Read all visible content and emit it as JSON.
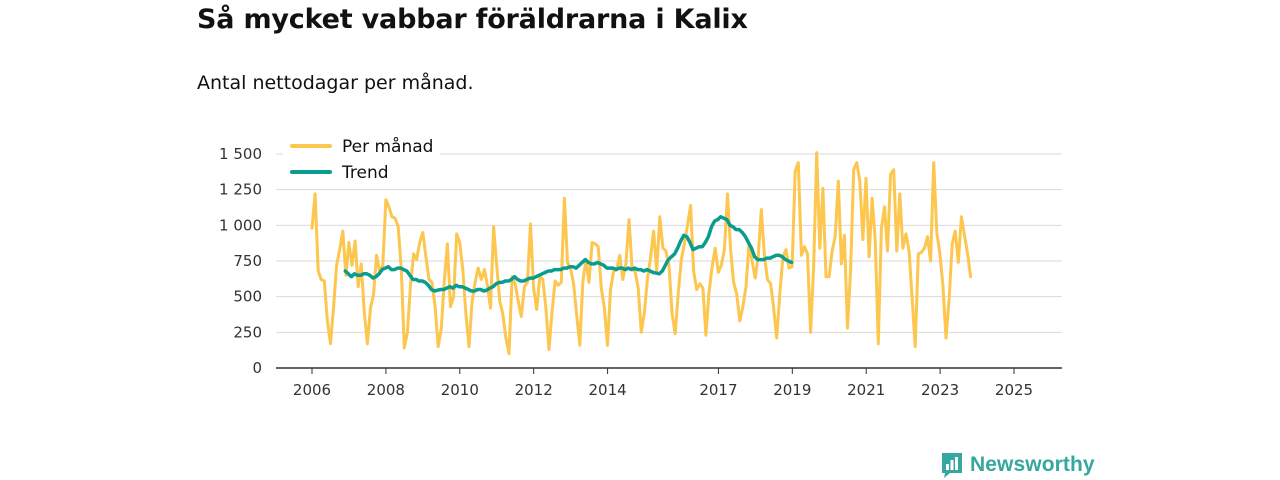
{
  "header": {
    "title": "Så mycket vabbar föräldrarna i Kalix",
    "subtitle": "Antal nettodagar per månad."
  },
  "brand": {
    "name": "Newsworthy"
  },
  "colors": {
    "per_month": "#fcc64f",
    "trend": "#0a9d8f",
    "grid": "#d9d9d9",
    "brand": "#35a79e"
  },
  "chart_data": {
    "type": "line",
    "title": "Så mycket vabbar föräldrarna i Kalix",
    "subtitle": "Antal nettodagar per månad.",
    "xlabel": "",
    "ylabel": "",
    "ylim": [
      0,
      1500
    ],
    "yticks": [
      0,
      250,
      500,
      750,
      1000,
      1250,
      1500
    ],
    "ytick_labels": [
      "0",
      "250",
      "500",
      "750",
      "1 000",
      "1 250",
      "1 500"
    ],
    "xlim": [
      2006.0,
      2025.5
    ],
    "xticks": [
      2006,
      2008,
      2010,
      2012,
      2014,
      2017,
      2019,
      2021,
      2023,
      2025
    ],
    "xtick_labels": [
      "2006",
      "2008",
      "2010",
      "2012",
      "2014",
      "2017",
      "2019",
      "2021",
      "2023",
      "2025"
    ],
    "grid": true,
    "legend_position": "top-left",
    "series": [
      {
        "name": "Per månad",
        "x_start": 2006.0,
        "step": 0.0833,
        "values": [
          980,
          1220,
          680,
          620,
          610,
          330,
          170,
          420,
          720,
          830,
          960,
          650,
          880,
          720,
          890,
          570,
          730,
          390,
          170,
          420,
          520,
          790,
          680,
          720,
          1180,
          1130,
          1060,
          1050,
          990,
          690,
          140,
          250,
          580,
          800,
          760,
          880,
          950,
          780,
          620,
          600,
          430,
          150,
          280,
          610,
          870,
          430,
          500,
          940,
          880,
          690,
          380,
          150,
          460,
          600,
          700,
          620,
          690,
          580,
          420,
          990,
          720,
          470,
          380,
          210,
          100,
          640,
          590,
          470,
          360,
          570,
          600,
          1010,
          560,
          410,
          640,
          620,
          420,
          130,
          400,
          610,
          580,
          600,
          1190,
          740,
          700,
          590,
          370,
          160,
          600,
          760,
          600,
          880,
          870,
          850,
          560,
          420,
          160,
          550,
          680,
          690,
          790,
          620,
          730,
          1040,
          700,
          670,
          560,
          250,
          390,
          630,
          770,
          960,
          680,
          1060,
          840,
          820,
          720,
          380,
          240,
          520,
          760,
          870,
          1000,
          1140,
          680,
          550,
          590,
          560,
          230,
          530,
          710,
          840,
          670,
          720,
          830,
          1220,
          830,
          600,
          520,
          330,
          430,
          570,
          870,
          750,
          630,
          790,
          1110,
          790,
          620,
          590,
          420,
          210,
          520,
          780,
          830,
          700,
          710,
          1380,
          1440,
          790,
          850,
          800,
          250,
          720,
          1510,
          840,
          1260,
          640,
          640,
          820,
          920,
          1310,
          730,
          930,
          280,
          690,
          1390,
          1440,
          1310,
          900,
          1330,
          780,
          1190,
          900,
          170,
          980,
          1130,
          820,
          1360,
          1390,
          820,
          1220,
          840,
          940,
          820,
          480,
          150,
          800,
          810,
          840,
          920,
          750,
          1440,
          950,
          800,
          580,
          210,
          480,
          870,
          960,
          740,
          1060,
          930,
          800,
          640
        ]
      },
      {
        "name": "Trend",
        "x_start": 2006.9,
        "step": 0.0833,
        "values": [
          680,
          660,
          640,
          660,
          650,
          650,
          660,
          660,
          650,
          630,
          640,
          660,
          690,
          700,
          710,
          690,
          690,
          700,
          700,
          690,
          680,
          650,
          620,
          620,
          610,
          610,
          600,
          580,
          550,
          540,
          545,
          550,
          550,
          560,
          570,
          560,
          580,
          570,
          570,
          560,
          550,
          540,
          540,
          550,
          550,
          540,
          545,
          560,
          570,
          590,
          600,
          600,
          610,
          610,
          620,
          640,
          620,
          610,
          610,
          620,
          630,
          630,
          640,
          650,
          660,
          670,
          680,
          680,
          690,
          690,
          690,
          700,
          700,
          710,
          710,
          700,
          720,
          740,
          760,
          740,
          730,
          730,
          740,
          730,
          720,
          700,
          700,
          700,
          690,
          700,
          700,
          690,
          700,
          690,
          700,
          690,
          690,
          680,
          690,
          680,
          670,
          665,
          660,
          680,
          720,
          760,
          780,
          800,
          840,
          890,
          930,
          920,
          880,
          830,
          840,
          850,
          850,
          880,
          920,
          990,
          1030,
          1040,
          1060,
          1050,
          1040,
          1000,
          990,
          970,
          970,
          950,
          920,
          880,
          840,
          780,
          760,
          760,
          760,
          770,
          770,
          780,
          790,
          790,
          780,
          760,
          750,
          740
        ]
      }
    ]
  }
}
